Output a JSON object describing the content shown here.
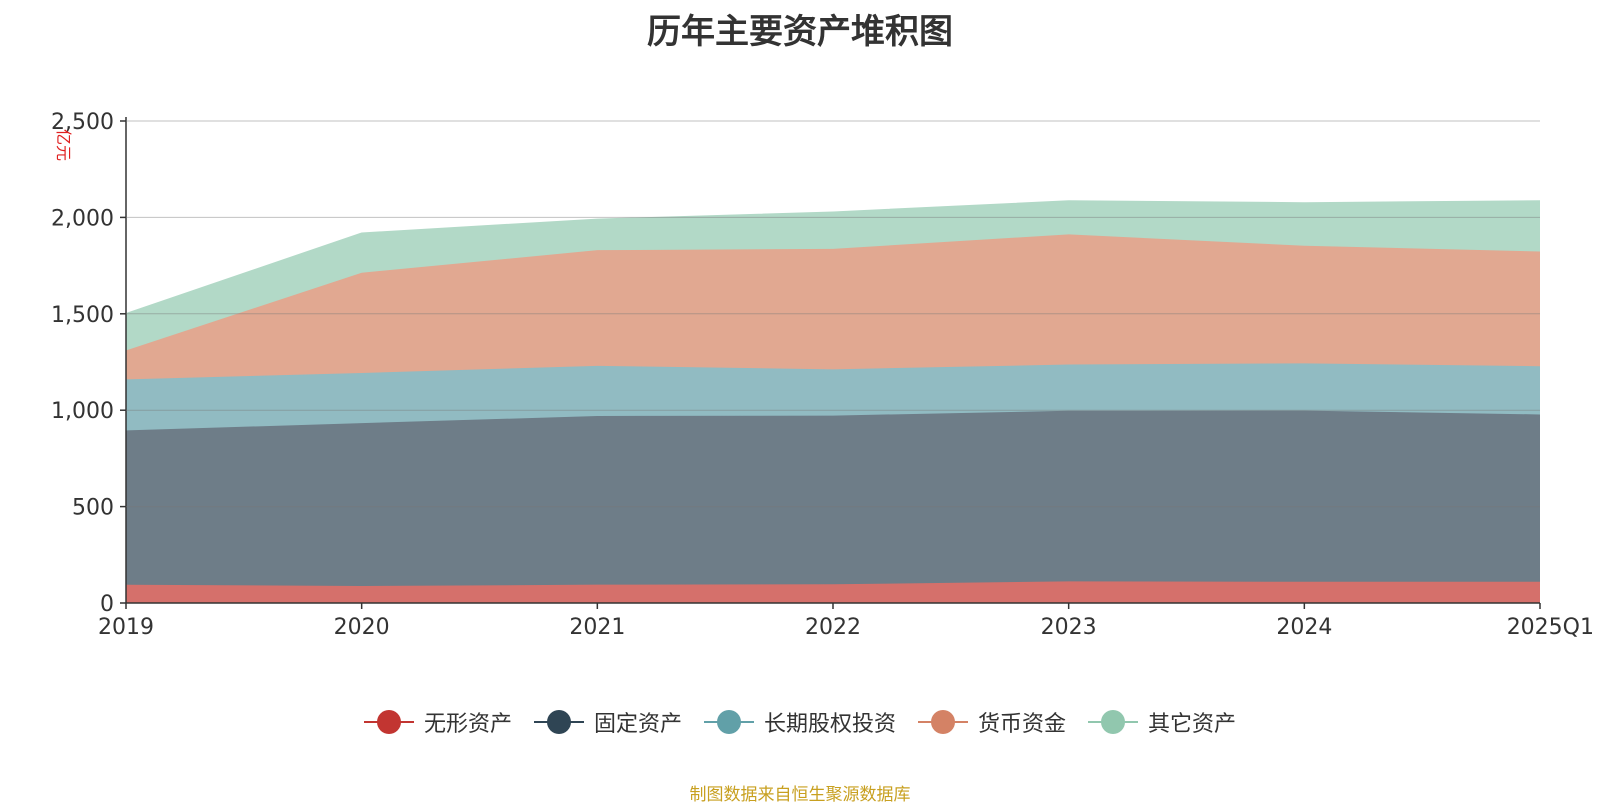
{
  "chart_data": {
    "type": "area",
    "stacked": true,
    "title": "历年主要资产堆积图",
    "ylabel": "亿元",
    "x": [
      "2019",
      "2020",
      "2021",
      "2022",
      "2023",
      "2024",
      "2025Q1"
    ],
    "ylim": [
      0,
      2500
    ],
    "yticks": [
      "0",
      "500",
      "1,000",
      "1,500",
      "2,000",
      "2,500"
    ],
    "grid": true,
    "legend_position": "bottom",
    "series": [
      {
        "name": "无形资产",
        "color": "#c23531",
        "fill": "#d5706b",
        "values": [
          95,
          88,
          95,
          97,
          112,
          110,
          110
        ]
      },
      {
        "name": "固定资产",
        "color": "#2f4554",
        "fill": "#6e7d88",
        "values": [
          800,
          845,
          875,
          875,
          885,
          888,
          868
        ]
      },
      {
        "name": "长期股权投资",
        "color": "#61a0a8",
        "fill": "#91bbc2",
        "values": [
          265,
          260,
          260,
          240,
          240,
          245,
          250
        ]
      },
      {
        "name": "货币资金",
        "color": "#d48265",
        "fill": "#e1a891",
        "values": [
          150,
          520,
          600,
          625,
          675,
          610,
          595
        ]
      },
      {
        "name": "其它资产",
        "color": "#91c7ae",
        "fill": "#b2d9c7",
        "values": [
          190,
          205,
          160,
          190,
          173,
          222,
          262
        ]
      }
    ]
  },
  "source_note": "制图数据来自恒生聚源数据库"
}
